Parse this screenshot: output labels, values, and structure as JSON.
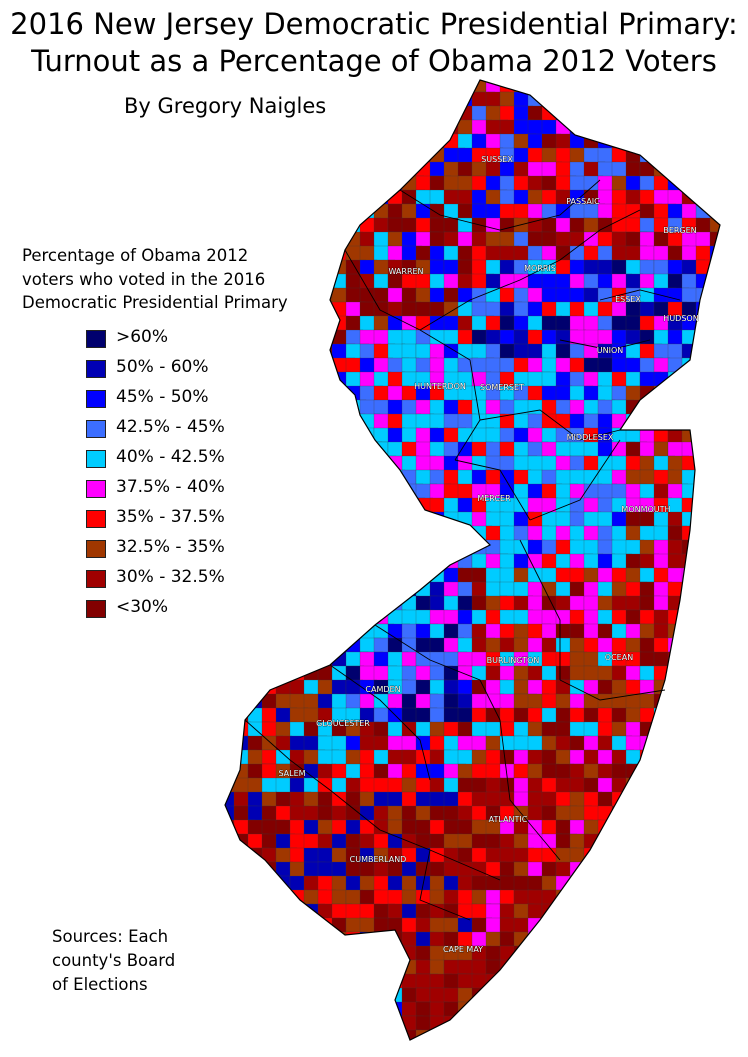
{
  "title_line1": "2016 New Jersey Democratic Presidential Primary:",
  "title_line2": "Turnout as a Percentage of Obama 2012 Voters",
  "byline": "By Gregory Naigles",
  "legend": {
    "title_lines": [
      "Percentage of Obama 2012",
      "voters who voted in the 2016",
      "Democratic Presidential Primary"
    ],
    "items": [
      {
        "label": ">60%",
        "color": "#00006e"
      },
      {
        "label": "50% - 60%",
        "color": "#0000b4"
      },
      {
        "label": "45% - 50%",
        "color": "#0000ff"
      },
      {
        "label": "42.5% - 45%",
        "color": "#3c6eff"
      },
      {
        "label": "40% - 42.5%",
        "color": "#00ccff"
      },
      {
        "label": "37.5% - 40%",
        "color": "#ff00ff"
      },
      {
        "label": "35% - 37.5%",
        "color": "#ff0000"
      },
      {
        "label": "32.5% - 35%",
        "color": "#a03700"
      },
      {
        "label": "30% - 32.5%",
        "color": "#a00000"
      },
      {
        "label": "<30%",
        "color": "#820000"
      }
    ]
  },
  "counties": [
    "SUSSEX",
    "PASSAIC",
    "BERGEN",
    "WARREN",
    "MORRIS",
    "ESSEX",
    "HUDSON",
    "UNION",
    "HUNTERDON",
    "SOMERSET",
    "MIDDLESEX",
    "MERCER",
    "MONMOUTH",
    "BURLINGTON",
    "OCEAN",
    "CAMDEN",
    "GLOUCESTER",
    "SALEM",
    "ATLANTIC",
    "CUMBERLAND",
    "CAPE MAY"
  ],
  "sources_lines": [
    "Sources: Each",
    "county's Board",
    "of Elections"
  ]
}
